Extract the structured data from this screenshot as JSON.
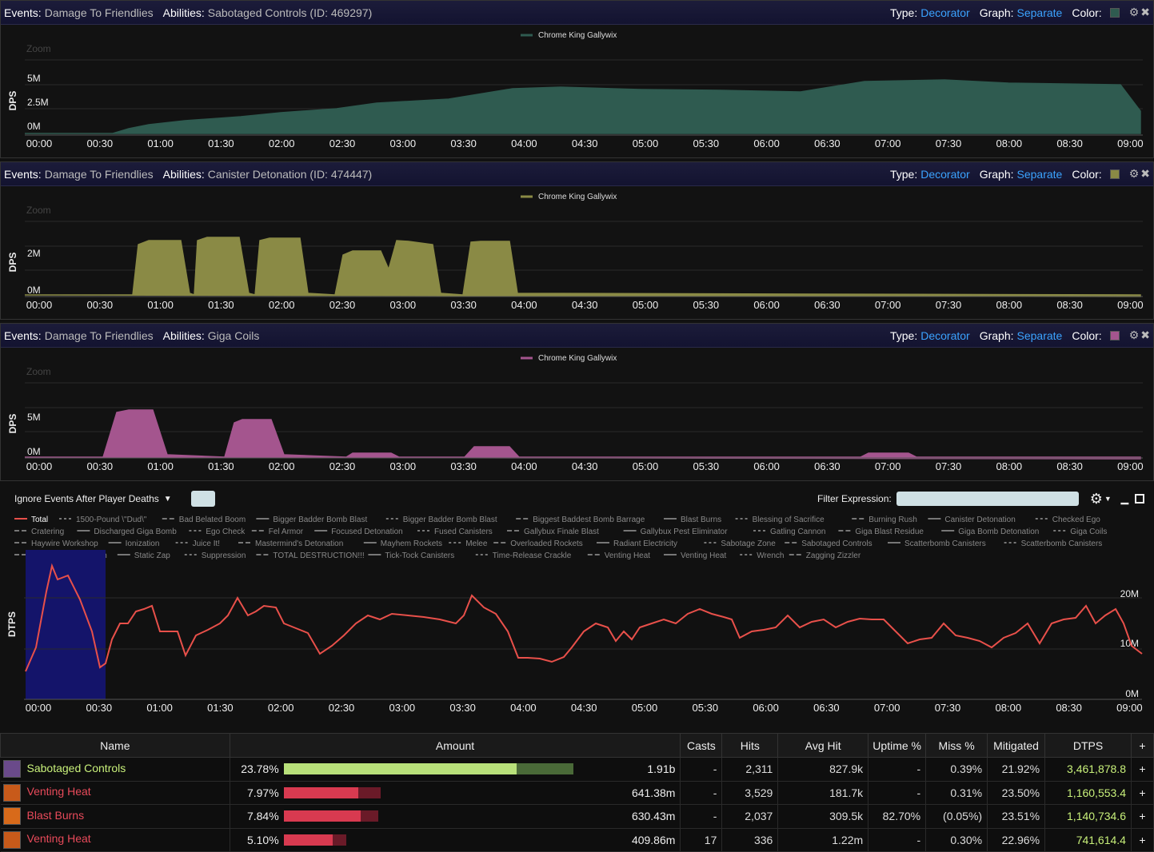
{
  "panels": [
    {
      "events_key": "Events:",
      "events_val": "Damage To Friendlies",
      "abilities_key": "Abilities:",
      "abilities_val": "Sabotaged Controls (ID: 469297)",
      "type_key": "Type:",
      "type_val": "Decorator",
      "graph_key": "Graph:",
      "graph_val": "Separate",
      "color_key": "Color:",
      "color": "#2f5b50",
      "legend": "Chrome King Gallywix",
      "zoom": "Zoom",
      "ylabel": "DPS",
      "yticks": [
        "5M",
        "2.5M",
        "0M"
      ]
    },
    {
      "events_key": "Events:",
      "events_val": "Damage To Friendlies",
      "abilities_key": "Abilities:",
      "abilities_val": "Canister Detonation (ID: 474447)",
      "type_key": "Type:",
      "type_val": "Decorator",
      "graph_key": "Graph:",
      "graph_val": "Separate",
      "color_key": "Color:",
      "color": "#8a8a45",
      "legend": "Chrome King Gallywix",
      "zoom": "Zoom",
      "ylabel": "DPS",
      "yticks": [
        "2M",
        "0M"
      ]
    },
    {
      "events_key": "Events:",
      "events_val": "Damage To Friendlies",
      "abilities_key": "Abilities:",
      "abilities_val": "Giga Coils",
      "type_key": "Type:",
      "type_val": "Decorator",
      "graph_key": "Graph:",
      "graph_val": "Separate",
      "color_key": "Color:",
      "color": "#a4558e",
      "legend": "Chrome King Gallywix",
      "zoom": "Zoom",
      "ylabel": "DPS",
      "yticks": [
        "5M",
        "0M"
      ]
    }
  ],
  "xticks": [
    "00:00",
    "00:30",
    "01:00",
    "01:30",
    "02:00",
    "02:30",
    "03:00",
    "03:30",
    "04:00",
    "04:30",
    "05:00",
    "05:30",
    "06:00",
    "06:30",
    "07:00",
    "07:30",
    "08:00",
    "08:30",
    "09:00"
  ],
  "controls": {
    "ignore_label": "Ignore Events After Player Deaths",
    "filter_label": "Filter Expression:"
  },
  "main_chart": {
    "ylabel": "DTPS",
    "yticks": [
      "20M",
      "10M",
      "0M"
    ],
    "line_color": "#e8504a",
    "legend": [
      "Total",
      "1500-Pound \\\"Dud\\\"",
      "Bad Belated Boom",
      "Bigger Badder Bomb Blast",
      "Bigger Badder Bomb Blast",
      "Biggest Baddest Bomb Barrage",
      "Blast Burns",
      "Blessing of Sacrifice",
      "Burning Rush",
      "Canister Detonation",
      "Checked Ego",
      "Cratering",
      "Discharged Giga Bomb",
      "Ego Check",
      "Fel Armor",
      "Focused Detonation",
      "Fused Canisters",
      "Gallybux Finale Blast",
      "Gallybux Pest Eliminator",
      "Gatling Cannon",
      "Giga Blast Residue",
      "Giga Bomb Detonation",
      "Giga Coils",
      "Haywire Workshop",
      "Ionization",
      "Juice It!",
      "Mastermind's Detonation",
      "Mayhem Rockets",
      "Melee",
      "Overloaded Rockets",
      "Radiant Electricity",
      "Sabotage Zone",
      "Sabotaged Controls",
      "Scatterbomb Canisters",
      "Scatterbomb Canisters",
      "Shadow Word: Death",
      "Static Zap",
      "Suppression",
      "TOTAL DESTRUCTION!!!",
      "Tick-Tock Canisters",
      "Time-Release Crackle",
      "Venting Heat",
      "Venting Heat",
      "Wrench",
      "Zagging Zizzler"
    ]
  },
  "table": {
    "headers": [
      "Name",
      "Amount",
      "Casts",
      "Hits",
      "Avg Hit",
      "Uptime %",
      "Miss %",
      "Mitigated",
      "DTPS",
      "+"
    ],
    "rows": [
      {
        "name": "Sabotaged Controls",
        "name_color": "#c8f07a",
        "pct": "23.78%",
        "bar": 0.686,
        "bar2": 0.167,
        "bar_color": "#b8e07a",
        "bar2_color": "#4a6a38",
        "amount": "1.91b",
        "casts": "-",
        "hits": "2,311",
        "avg": "827.9k",
        "uptime": "-",
        "miss": "0.39%",
        "mitigated": "21.92%",
        "dtps": "3,461,878.8",
        "plus": "+",
        "icon_color": "#6a4a8a"
      },
      {
        "name": "Venting Heat",
        "name_color": "#e84a5a",
        "pct": "7.97%",
        "bar": 0.22,
        "bar2": 0.065,
        "bar_color": "#d83a50",
        "bar2_color": "#6a1a28",
        "amount": "641.38m",
        "casts": "-",
        "hits": "3,529",
        "avg": "181.7k",
        "uptime": "-",
        "miss": "0.31%",
        "mitigated": "23.50%",
        "dtps": "1,160,553.4",
        "plus": "+",
        "icon_color": "#c85a1a"
      },
      {
        "name": "Blast Burns",
        "name_color": "#e84a5a",
        "pct": "7.84%",
        "bar": 0.226,
        "bar2": 0.052,
        "bar_color": "#d83a50",
        "bar2_color": "#6a1a28",
        "amount": "630.43m",
        "casts": "-",
        "hits": "2,037",
        "avg": "309.5k",
        "uptime": "82.70%",
        "miss": "(0.05%)",
        "mitigated": "23.51%",
        "dtps": "1,140,734.6",
        "plus": "+",
        "icon_color": "#d86a1a"
      },
      {
        "name": "Venting Heat",
        "name_color": "#e84a5a",
        "pct": "5.10%",
        "bar": 0.145,
        "bar2": 0.04,
        "bar_color": "#d83a50",
        "bar2_color": "#6a1a28",
        "amount": "409.86m",
        "casts": "17",
        "hits": "336",
        "avg": "1.22m",
        "uptime": "-",
        "miss": "0.30%",
        "mitigated": "22.96%",
        "dtps": "741,614.4",
        "plus": "+",
        "icon_color": "#c85a1a"
      }
    ]
  }
}
